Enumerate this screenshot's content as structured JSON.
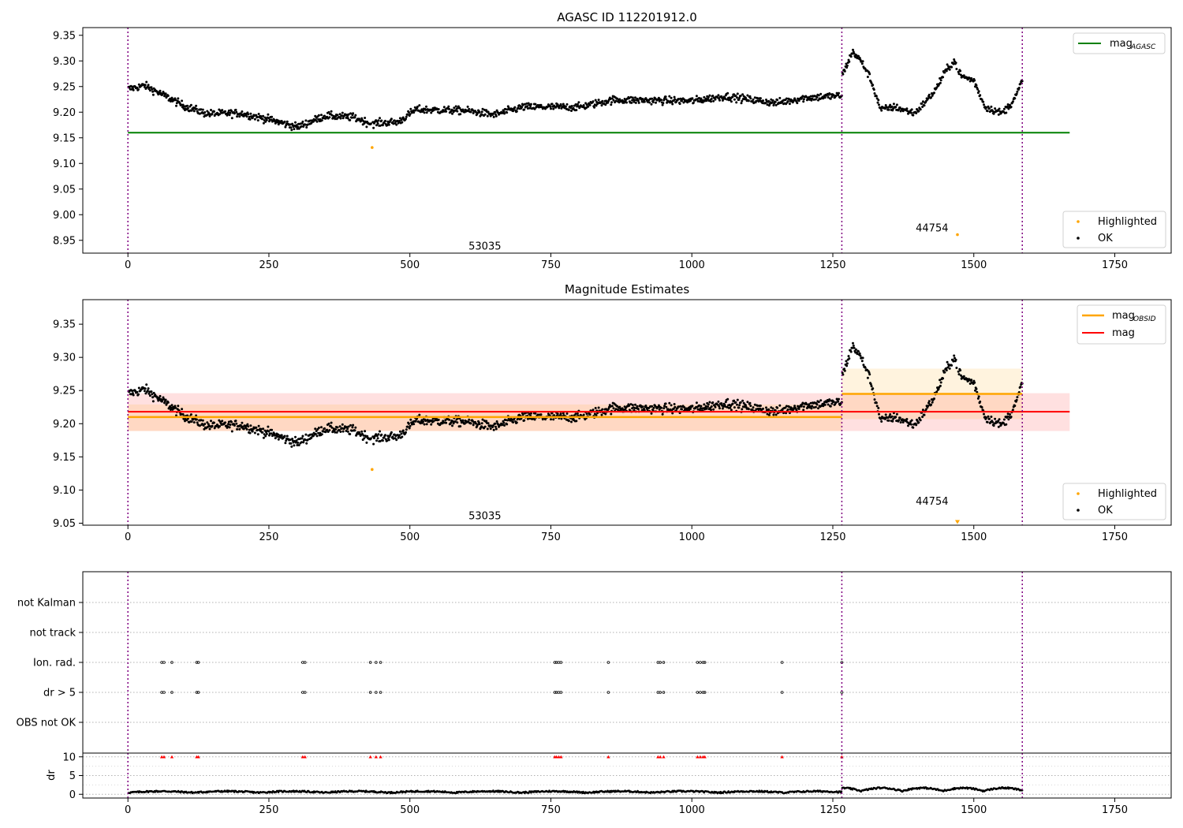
{
  "chart_data": [
    {
      "type": "scatter",
      "title": "AGASC ID 112201912.0",
      "xlim": [
        -80,
        1850
      ],
      "ylim": [
        8.925,
        9.365
      ],
      "x_ticks": [
        "0",
        "250",
        "500",
        "750",
        "1000",
        "1250",
        "1500",
        "1750"
      ],
      "x_tick_values": [
        0,
        250,
        500,
        750,
        1000,
        1250,
        1500,
        1750
      ],
      "y_ticks": [
        "8.95",
        "9.00",
        "9.05",
        "9.10",
        "9.15",
        "9.20",
        "9.25",
        "9.30",
        "9.35"
      ],
      "y_tick_values": [
        8.95,
        9.0,
        9.05,
        9.1,
        9.15,
        9.2,
        9.25,
        9.3,
        9.35
      ],
      "obs_boundaries": [
        0,
        1266,
        1586
      ],
      "obsid_labels": [
        {
          "text": "53035",
          "x": 633,
          "y": 8.94
        },
        {
          "text": "44754",
          "x": 1426,
          "y": 8.975
        }
      ],
      "reference_lines": [
        {
          "name": "mag_AGASC",
          "y": 9.16,
          "x_range": [
            0,
            1670
          ],
          "color": "#008000"
        }
      ],
      "highlighted_points": [
        [
          433,
          9.131
        ],
        [
          1471,
          8.961
        ]
      ],
      "legend_top": {
        "placement": "top-right",
        "entries": [
          {
            "label": "mag",
            "sub": "AGASC",
            "color": "#008000"
          }
        ]
      },
      "legend_bottom": {
        "placement": "bottom-right",
        "entries": [
          {
            "label": "Highlighted",
            "color": "#ffa500"
          },
          {
            "label": "OK",
            "color": "#000000"
          }
        ]
      }
    },
    {
      "type": "scatter",
      "title": "Magnitude Estimates",
      "xlim": [
        -80,
        1850
      ],
      "ylim": [
        9.047,
        9.387
      ],
      "x_ticks": [
        "0",
        "250",
        "500",
        "750",
        "1000",
        "1250",
        "1500",
        "1750"
      ],
      "x_tick_values": [
        0,
        250,
        500,
        750,
        1000,
        1250,
        1500,
        1750
      ],
      "y_ticks": [
        "9.05",
        "9.10",
        "9.15",
        "9.20",
        "9.25",
        "9.30",
        "9.35"
      ],
      "y_tick_values": [
        9.05,
        9.1,
        9.15,
        9.2,
        9.25,
        9.3,
        9.35
      ],
      "obs_boundaries": [
        0,
        1266,
        1586
      ],
      "obsid_labels": [
        {
          "text": "53035",
          "x": 633,
          "y": 9.062
        },
        {
          "text": "44754",
          "x": 1426,
          "y": 9.084
        }
      ],
      "mag_line": {
        "name": "mag",
        "y": 9.218,
        "band": [
          9.189,
          9.246
        ],
        "x_range": [
          0,
          1670
        ],
        "color": "#ff0000"
      },
      "obsid_mags": [
        {
          "x_range": [
            0,
            1266
          ],
          "y": 9.21,
          "band": [
            9.189,
            9.229
          ]
        },
        {
          "x_range": [
            1266,
            1586
          ],
          "y": 9.245,
          "band": [
            9.207,
            9.283
          ]
        }
      ],
      "highlighted_points": [
        [
          433,
          9.131
        ]
      ],
      "offscale_points": [
        [
          1471,
          9.05
        ]
      ],
      "legend_top": {
        "placement": "top-right",
        "entries": [
          {
            "label": "mag",
            "sub": "OBSID",
            "color": "#ffa500"
          },
          {
            "label": "mag",
            "color": "#ff0000"
          }
        ]
      },
      "legend_bottom": {
        "placement": "bottom-right",
        "entries": [
          {
            "label": "Highlighted",
            "color": "#ffa500"
          },
          {
            "label": "OK",
            "color": "#000000"
          }
        ]
      }
    },
    {
      "type": "scatter",
      "title": "",
      "xlim": [
        -80,
        1850
      ],
      "flag_rows": [
        "not Kalman",
        "not track",
        "Ion. rad.",
        "dr > 5",
        "OBS not OK"
      ],
      "flag_marks": {
        "Ion. rad.": [
          60,
          64,
          78,
          122,
          125,
          310,
          314,
          430,
          440,
          448,
          757,
          760,
          764,
          768,
          852,
          940,
          944,
          950,
          1010,
          1015,
          1020,
          1023,
          1160,
          1266
        ],
        "dr > 5": [
          60,
          64,
          78,
          122,
          125,
          310,
          314,
          430,
          440,
          448,
          757,
          760,
          764,
          768,
          852,
          940,
          944,
          950,
          1010,
          1015,
          1020,
          1023,
          1160,
          1266
        ]
      }
    },
    {
      "type": "scatter",
      "title": "",
      "xlim": [
        -80,
        1850
      ],
      "ylim": [
        -1,
        11
      ],
      "ylabel": "dr",
      "y_ticks": [
        "0",
        "5",
        "10"
      ],
      "y_tick_values": [
        0,
        5,
        10
      ],
      "x_ticks": [
        "0",
        "250",
        "500",
        "750",
        "1000",
        "1250",
        "1500",
        "1750"
      ],
      "x_tick_values": [
        0,
        250,
        500,
        750,
        1000,
        1250,
        1500,
        1750
      ],
      "capped_points": [
        60,
        64,
        78,
        122,
        125,
        310,
        314,
        430,
        440,
        448,
        757,
        760,
        764,
        768,
        852,
        940,
        944,
        950,
        1010,
        1015,
        1020,
        1023,
        1160,
        1266
      ],
      "capped_value": 10
    }
  ]
}
